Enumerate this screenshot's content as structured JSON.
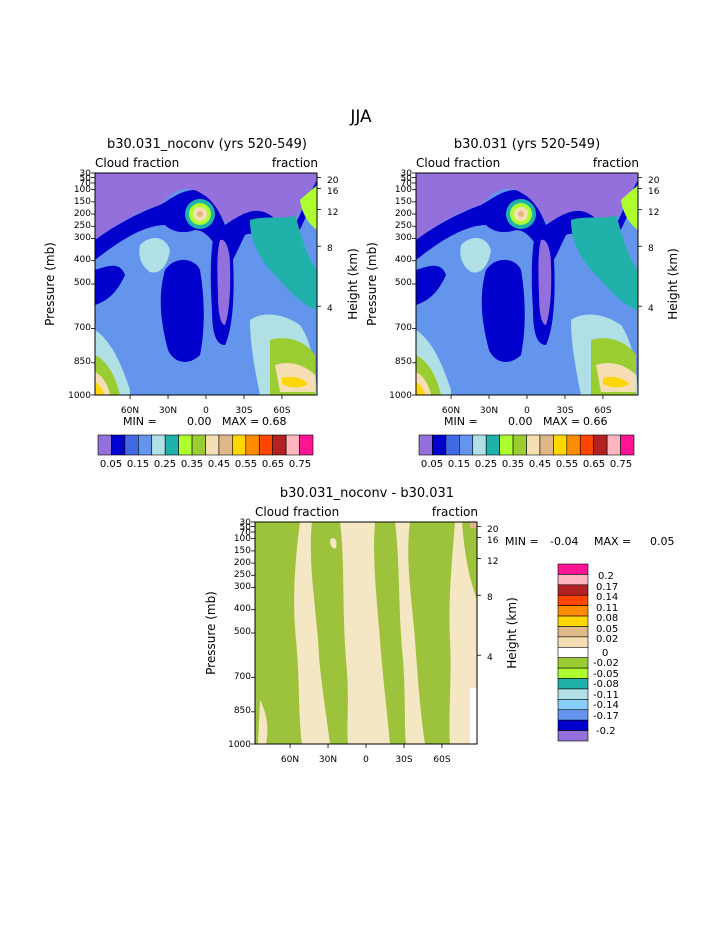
{
  "page": {
    "title": "JJA"
  },
  "colors": {
    "cbar": [
      "#9370db",
      "#0000cd",
      "#4169e1",
      "#6495ed",
      "#b0e0e6",
      "#20b2aa",
      "#adff2f",
      "#9acd32",
      "#f5deb3",
      "#deb887",
      "#ffd700",
      "#ff8c00",
      "#ff4500",
      "#b22222",
      "#ffb6c1",
      "#ff1493"
    ],
    "diff_scale": [
      "#ff1493",
      "#ffb6c1",
      "#b22222",
      "#ff4500",
      "#ff8c00",
      "#ffd700",
      "#deb887",
      "#f5deb3",
      "#ffffff",
      "#9acd32",
      "#adff2f",
      "#20b2aa",
      "#b0e0e6",
      "#87cefa",
      "#6495ed",
      "#0000cd",
      "#9370db"
    ],
    "cloud_top": "#9370db",
    "diff_pos": "#f5e6c4",
    "diff_neg": "#9dc23b"
  },
  "chart_data": [
    {
      "type": "heatmap",
      "title": "b30.031_noconv (yrs 520-549)",
      "left_label": "Cloud fraction",
      "right_label": "fraction",
      "ylabel": "Pressure (mb)",
      "y2label": "Height (km)",
      "x_ticks": [
        "60N",
        "30N",
        "0",
        "30S",
        "60S"
      ],
      "y_ticks": [
        "30",
        "50",
        "70",
        "100",
        "150",
        "200",
        "250",
        "300",
        "400",
        "500",
        "700",
        "850",
        "1000"
      ],
      "y2_ticks": [
        "20",
        "16",
        "12",
        "8",
        "4"
      ],
      "min_label": "MIN =",
      "min_value": "0.00",
      "max_label": "MAX =",
      "max_value": "0.68",
      "colorbar_labels": [
        "0.05",
        "0.15",
        "0.25",
        "0.35",
        "0.45",
        "0.55",
        "0.65",
        "0.75"
      ]
    },
    {
      "type": "heatmap",
      "title": "b30.031 (yrs 520-549)",
      "left_label": "Cloud fraction",
      "right_label": "fraction",
      "ylabel": "Pressure (mb)",
      "y2label": "Height (km)",
      "x_ticks": [
        "60N",
        "30N",
        "0",
        "30S",
        "60S"
      ],
      "y_ticks": [
        "30",
        "50",
        "70",
        "100",
        "150",
        "200",
        "250",
        "300",
        "400",
        "500",
        "700",
        "850",
        "1000"
      ],
      "y2_ticks": [
        "20",
        "16",
        "12",
        "8",
        "4"
      ],
      "min_label": "MIN =",
      "min_value": "0.00",
      "max_label": "MAX =",
      "max_value": "0.66",
      "colorbar_labels": [
        "0.05",
        "0.15",
        "0.25",
        "0.35",
        "0.45",
        "0.55",
        "0.65",
        "0.75"
      ]
    },
    {
      "type": "heatmap",
      "title": "b30.031_noconv - b30.031",
      "left_label": "Cloud fraction",
      "right_label": "fraction",
      "ylabel": "Pressure (mb)",
      "y2label": "Height (km)",
      "x_ticks": [
        "60N",
        "30N",
        "0",
        "30S",
        "60S"
      ],
      "y_ticks": [
        "30",
        "50",
        "70",
        "100",
        "150",
        "200",
        "250",
        "300",
        "400",
        "500",
        "700",
        "850",
        "1000"
      ],
      "y2_ticks": [
        "20",
        "16",
        "12",
        "8",
        "4"
      ],
      "min_label": "MIN =",
      "min_value": "-0.04",
      "max_label": "MAX =",
      "max_value": "0.05",
      "colorbar_labels": [
        "0.2",
        "0.17",
        "0.14",
        "0.11",
        "0.08",
        "0.05",
        "0.02",
        "0",
        "-0.02",
        "-0.05",
        "-0.08",
        "-0.11",
        "-0.14",
        "-0.17",
        "-0.2"
      ]
    }
  ]
}
